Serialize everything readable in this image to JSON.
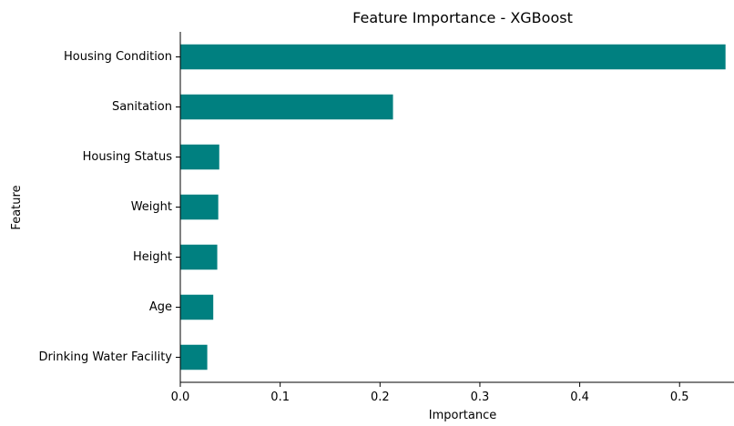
{
  "chart_data": {
    "type": "bar",
    "orientation": "horizontal",
    "title": "Feature Importance - XGBoost",
    "xlabel": "Importance",
    "ylabel": "Feature",
    "categories": [
      "Housing Condition",
      "Sanitation",
      "Housing Status",
      "Weight",
      "Height",
      "Age",
      "Drinking Water Facility"
    ],
    "values": [
      0.546,
      0.213,
      0.039,
      0.038,
      0.037,
      0.033,
      0.027
    ],
    "xlim": [
      0,
      0.5545
    ],
    "xticks": [
      0.0,
      0.1,
      0.2,
      0.3,
      0.4,
      0.5
    ],
    "xtick_labels": [
      "0.0",
      "0.1",
      "0.2",
      "0.3",
      "0.4",
      "0.5"
    ],
    "bar_color": "#008080",
    "grid": false,
    "legend": null
  }
}
